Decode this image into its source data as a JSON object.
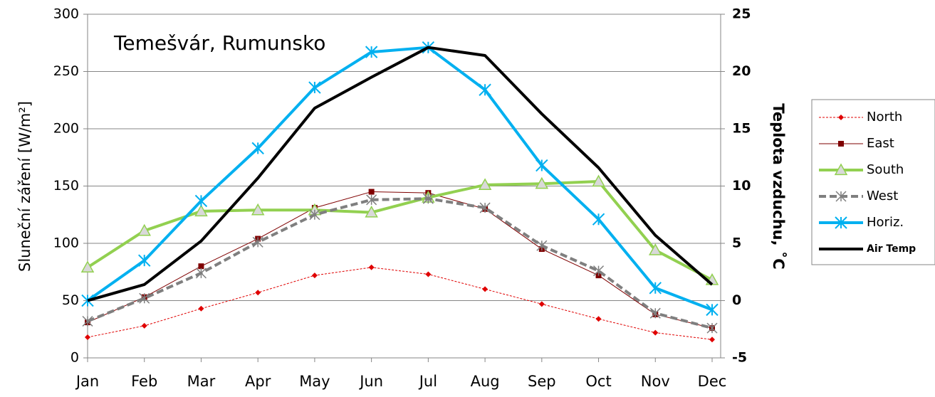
{
  "chart_data": {
    "type": "line",
    "annotation": "Temešvár, Rumunsko",
    "y_label": "Sluneční záření [W/m²]",
    "y2_label": "Teplota vzduchu, ˚C",
    "categories": [
      "Jan",
      "Feb",
      "Mar",
      "Apr",
      "May",
      "Jun",
      "Jul",
      "Aug",
      "Sep",
      "Oct",
      "Nov",
      "Dec"
    ],
    "ylim": [
      0,
      300
    ],
    "yticks": [
      0,
      50,
      100,
      150,
      200,
      250,
      300
    ],
    "y2lim": [
      -5,
      25
    ],
    "y2ticks": [
      -5,
      0,
      5,
      10,
      15,
      20,
      25
    ],
    "grid": true,
    "legend": "right",
    "series": [
      {
        "name": "North",
        "color": "#e00000",
        "values": [
          18,
          28,
          43,
          57,
          72,
          79,
          73,
          60,
          47,
          34,
          22,
          16
        ]
      },
      {
        "name": "East",
        "color": "#7f0000",
        "values": [
          31,
          53,
          80,
          104,
          131,
          145,
          144,
          130,
          95,
          72,
          38,
          26
        ]
      },
      {
        "name": "South",
        "color": "#92d050",
        "values": [
          79,
          111,
          128,
          129,
          129,
          127,
          140,
          151,
          152,
          154,
          94,
          68
        ]
      },
      {
        "name": "West",
        "color": "#7f7f7f",
        "values": [
          32,
          52,
          74,
          101,
          125,
          138,
          139,
          131,
          98,
          76,
          39,
          26
        ]
      },
      {
        "name": "Horiz.",
        "color": "#00b0f0",
        "values": [
          50,
          85,
          137,
          183,
          236,
          267,
          271,
          234,
          168,
          121,
          61,
          42
        ]
      },
      {
        "name": "Air Temp",
        "color": "#000000",
        "axis": "y2",
        "values": [
          0.0,
          1.4,
          5.2,
          10.7,
          16.8,
          19.5,
          22.1,
          21.4,
          16.3,
          11.6,
          5.7,
          1.4
        ]
      }
    ]
  }
}
